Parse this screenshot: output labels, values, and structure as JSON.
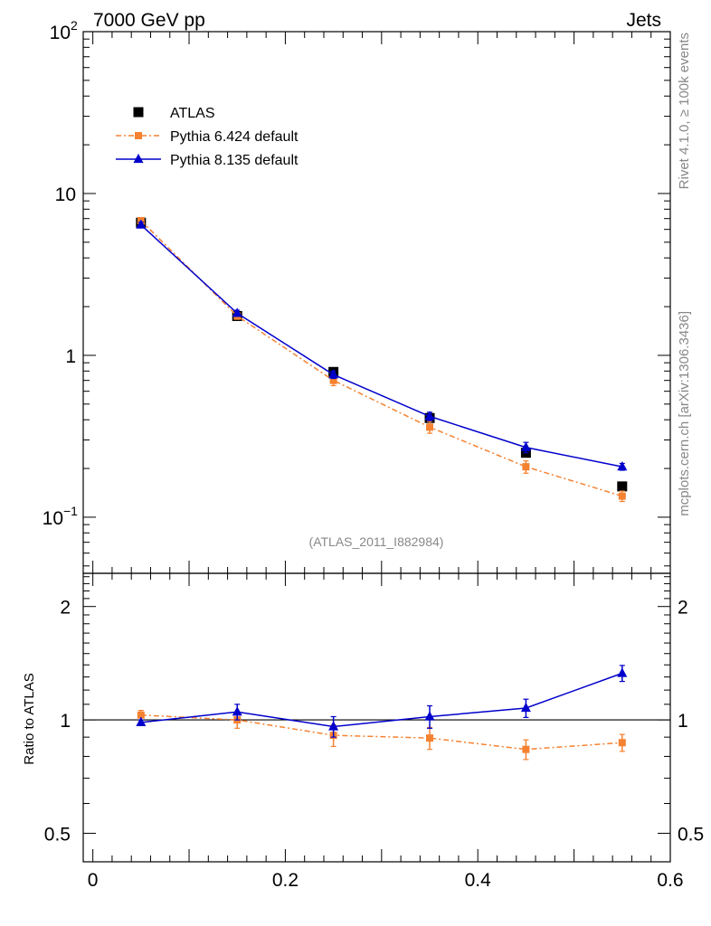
{
  "header": {
    "left": "7000 GeV pp",
    "right": "Jets"
  },
  "side_texts": {
    "rivet": "Rivet 4.1.0, ≥ 100k events",
    "mcplots": "mcplots.cern.ch [arXiv:1306.3436]"
  },
  "analysis_tag": "(ATLAS_2011_I882984)",
  "colors": {
    "atlas": "#000000",
    "pythia6": "#f58231",
    "pythia8": "#0000cc"
  },
  "chart_data": [
    {
      "type": "scatter",
      "name": "main",
      "yscale": "log",
      "xlim": [
        -0.01,
        0.6
      ],
      "ylim": [
        0.045,
        100
      ],
      "y_ticks": [
        {
          "value": 100,
          "base": "10",
          "exp": "2"
        },
        {
          "value": 10,
          "base": "10",
          "exp": ""
        },
        {
          "value": 1,
          "base": "1",
          "exp": ""
        },
        {
          "value": 0.1,
          "base": "10",
          "exp": "−1"
        }
      ],
      "legend": [
        "ATLAS",
        "Pythia 6.424 default",
        "Pythia 8.135 default"
      ],
      "legend_position": "top-left",
      "x": [
        0.05,
        0.15,
        0.25,
        0.35,
        0.45,
        0.55
      ],
      "series": [
        {
          "name": "ATLAS",
          "marker": "square",
          "line": "none",
          "values": [
            6.6,
            1.75,
            0.79,
            0.41,
            0.25,
            0.155
          ]
        },
        {
          "name": "Pythia 6.424 default",
          "marker": "square",
          "line": "dashdot",
          "values": [
            6.8,
            1.75,
            0.7,
            0.36,
            0.205,
            0.135
          ],
          "errors": [
            0.3,
            0.08,
            0.05,
            0.03,
            0.018,
            0.01
          ]
        },
        {
          "name": "Pythia 8.135 default",
          "marker": "triangle",
          "line": "solid",
          "values": [
            6.4,
            1.82,
            0.76,
            0.42,
            0.27,
            0.205
          ],
          "errors": [
            0.25,
            0.08,
            0.04,
            0.025,
            0.02,
            0.01
          ]
        }
      ]
    },
    {
      "type": "scatter",
      "name": "ratio",
      "yscale": "log",
      "xlim": [
        -0.01,
        0.6
      ],
      "ylim": [
        0.42,
        2.45
      ],
      "ylabel": "Ratio to ATLAS",
      "y_ticks": [
        {
          "value": 2,
          "label": "2"
        },
        {
          "value": 1,
          "label": "1"
        },
        {
          "value": 0.5,
          "label": "0.5"
        }
      ],
      "x_ticks": [
        {
          "value": 0,
          "label": "0"
        },
        {
          "value": 0.2,
          "label": "0.2"
        },
        {
          "value": 0.4,
          "label": "0.4"
        },
        {
          "value": 0.6,
          "label": "0.6"
        }
      ],
      "reference": 1,
      "x": [
        0.05,
        0.15,
        0.25,
        0.35,
        0.45,
        0.55
      ],
      "series": [
        {
          "name": "Pythia 6.424 default",
          "marker": "square",
          "line": "dashdot",
          "values": [
            1.03,
            1.0,
            0.91,
            0.895,
            0.835,
            0.87
          ],
          "errors": [
            0.03,
            0.05,
            0.06,
            0.06,
            0.05,
            0.045
          ]
        },
        {
          "name": "Pythia 8.135 default",
          "marker": "triangle",
          "line": "solid",
          "values": [
            0.985,
            1.05,
            0.96,
            1.02,
            1.075,
            1.33
          ],
          "errors": [
            0.015,
            0.05,
            0.06,
            0.07,
            0.06,
            0.065
          ]
        }
      ]
    }
  ]
}
